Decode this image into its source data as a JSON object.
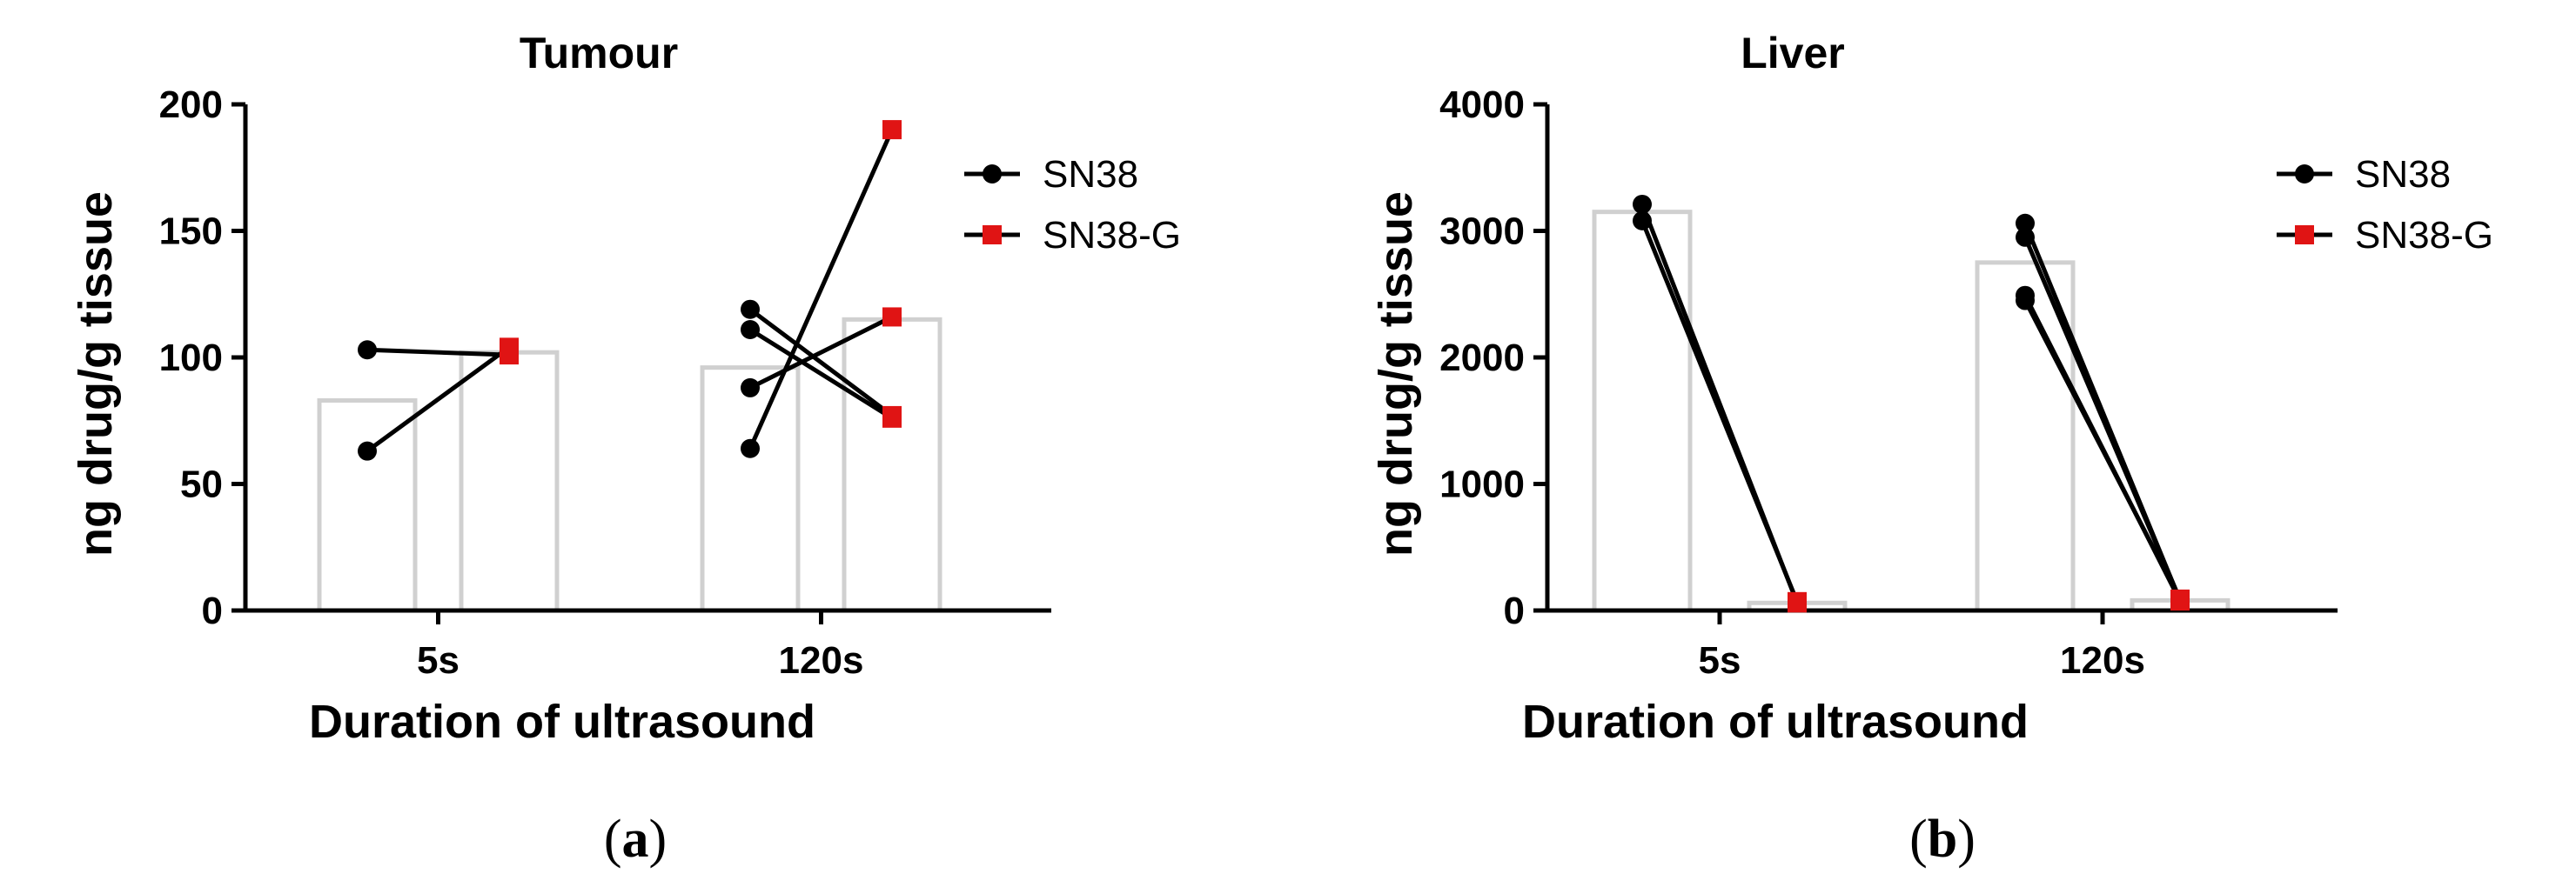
{
  "chart_data": [
    {
      "type": "bar",
      "title": "Tumour",
      "panel_label": "a",
      "xlabel": "Duration of ultrasound",
      "ylabel": "ng drug/g tissue",
      "categories": [
        "5s",
        "120s"
      ],
      "ylim": [
        0,
        200
      ],
      "yticks": [
        0,
        50,
        100,
        150,
        200
      ],
      "grid": false,
      "legend_position": "right",
      "series": [
        {
          "name": "SN38",
          "color": "#000000",
          "marker": "circle",
          "values": [
            83,
            96
          ]
        },
        {
          "name": "SN38-G",
          "color": "#e01414",
          "marker": "square",
          "values": [
            102,
            115
          ]
        }
      ],
      "paired_points": [
        {
          "category": "5s",
          "pairs": [
            [
              103,
              101
            ],
            [
              63,
              104
            ]
          ]
        },
        {
          "category": "120s",
          "pairs": [
            [
              119,
              77
            ],
            [
              111,
              76
            ],
            [
              88,
              116
            ],
            [
              64,
              190
            ]
          ]
        }
      ],
      "bar_color": "#d0d0d0"
    },
    {
      "type": "bar",
      "title": "Liver",
      "panel_label": "b",
      "xlabel": "Duration of ultrasound",
      "ylabel": "ng drug/g tissue",
      "categories": [
        "5s",
        "120s"
      ],
      "ylim": [
        0,
        4000
      ],
      "yticks": [
        0,
        1000,
        2000,
        3000,
        4000
      ],
      "grid": false,
      "legend_position": "right",
      "series": [
        {
          "name": "SN38",
          "color": "#000000",
          "marker": "circle",
          "values": [
            3150,
            2750
          ]
        },
        {
          "name": "SN38-G",
          "color": "#e01414",
          "marker": "square",
          "values": [
            60,
            80
          ]
        }
      ],
      "paired_points": [
        {
          "category": "5s",
          "pairs": [
            [
              3210,
              60
            ],
            [
              3080,
              70
            ]
          ]
        },
        {
          "category": "120s",
          "pairs": [
            [
              3060,
              80
            ],
            [
              2950,
              85
            ],
            [
              2490,
              75
            ],
            [
              2450,
              90
            ]
          ]
        }
      ],
      "bar_color": "#d0d0d0"
    }
  ]
}
